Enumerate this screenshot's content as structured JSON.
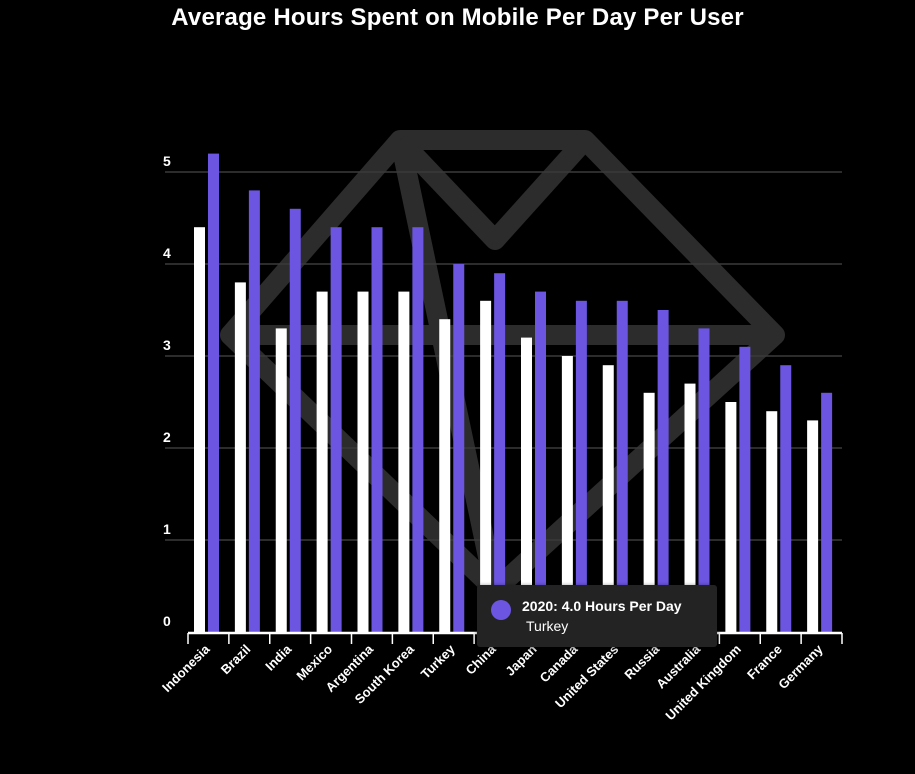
{
  "chart_data": {
    "type": "bar",
    "title": "Average Hours Spent on Mobile Per Day Per User",
    "xlabel": "",
    "ylabel": "",
    "ylim": [
      0,
      5.5
    ],
    "yticks": [
      0,
      1,
      2,
      3,
      4,
      5
    ],
    "grid": true,
    "categories": [
      "Indonesia",
      "Brazil",
      "India",
      "Mexico",
      "Argentina",
      "South Korea",
      "Turkey",
      "China",
      "Japan",
      "Canada",
      "United States",
      "Russia",
      "Australia",
      "United Kingdom",
      "France",
      "Germany"
    ],
    "series": [
      {
        "values": [
          4.4,
          3.8,
          3.3,
          3.7,
          3.7,
          3.7,
          3.4,
          3.6,
          3.2,
          3.0,
          2.9,
          2.6,
          2.7,
          2.5,
          2.4,
          2.3
        ]
      },
      {
        "name": "2020",
        "values": [
          5.2,
          4.8,
          4.6,
          4.4,
          4.4,
          4.4,
          4.0,
          3.9,
          3.7,
          3.6,
          3.6,
          3.5,
          3.3,
          3.1,
          2.9,
          2.6
        ]
      }
    ],
    "colors": {
      "series0": "#ffffff",
      "series1": "#6c55e0",
      "grid": "#3a3a3a",
      "axis": "#ffffff"
    }
  },
  "tooltip": {
    "line1": "2020: 4.0 Hours Per Day",
    "line2": "Turkey",
    "color": "#6c55e0"
  }
}
